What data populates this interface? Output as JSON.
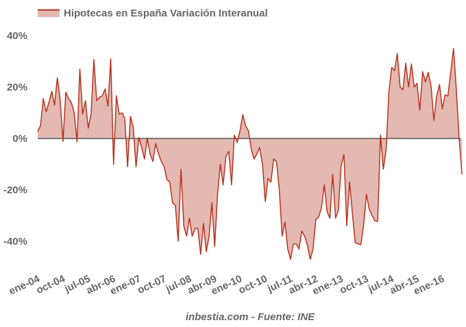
{
  "chart_data": {
    "type": "area",
    "title": "",
    "legend": {
      "label": "Hipotecas en España Variación Interanual",
      "position": "top-left"
    },
    "footer": "inbestia.com - Fuente: INE",
    "xlabel": "",
    "ylabel": "",
    "x_start": "ene-04",
    "frequency": "monthly",
    "x_tick_labels": [
      "ene-04",
      "oct-04",
      "jul-05",
      "abr-06",
      "ene-07",
      "oct-07",
      "jul-08",
      "abr-09",
      "ene-10",
      "oct-10",
      "jul-11",
      "abr-12",
      "ene-13",
      "oct-13",
      "jul-14",
      "abr-15",
      "ene-16"
    ],
    "x_tick_step_months": 9,
    "y_tick_labels": [
      "40%",
      "20%",
      "0%",
      "-20%",
      "-40%"
    ],
    "y_ticks": [
      40,
      20,
      0,
      -20,
      -40
    ],
    "ylim": [
      -50,
      45
    ],
    "grid": false,
    "colors": {
      "line": "#b8321e",
      "fill": "#e3b9b2",
      "zero_line": "#777777",
      "text": "#666666"
    },
    "series": [
      {
        "name": "Hipotecas en España Variación Interanual",
        "unit": "%",
        "values": [
          2.7,
          5,
          15.5,
          10.4,
          14,
          18.4,
          13,
          23.6,
          15,
          -1.1,
          18,
          15.5,
          14,
          10,
          -1.3,
          27,
          9.5,
          14.7,
          4,
          9.7,
          30.7,
          14.7,
          16,
          16.6,
          19.3,
          12.6,
          31,
          -10,
          16.6,
          9.5,
          10,
          7.7,
          -11,
          8.6,
          4.4,
          -11,
          0.4,
          -3.5,
          -8,
          0,
          -6,
          -9,
          -2,
          -6,
          -9,
          -11,
          -16,
          -17,
          -25,
          -26,
          -40,
          -12,
          -34,
          -38,
          -31,
          -38,
          -35,
          -35,
          -45,
          -33,
          -44,
          -38,
          -25,
          -42,
          -22,
          -10,
          -18,
          -7,
          -5,
          -18,
          1.3,
          -1.6,
          3,
          9.3,
          5,
          3,
          -4,
          -8,
          -6,
          -3.5,
          -10,
          -24.5,
          -15.5,
          -17,
          -8,
          -9,
          -20,
          -38,
          -32.5,
          -43,
          -47,
          -41,
          -41,
          -43,
          -36,
          -38,
          -41.5,
          -47,
          -43,
          -31.5,
          -30.5,
          -27,
          -18,
          -28.5,
          -31,
          -14,
          -31,
          -28,
          -10.5,
          -6.3,
          -34,
          -17,
          -29,
          -40.5,
          -41,
          -41.3,
          -33.7,
          -21.7,
          -27.5,
          -30,
          -32,
          -32.3,
          1.3,
          -12,
          -4.5,
          18.4,
          27.6,
          26.5,
          33,
          20,
          19,
          29.3,
          20,
          29,
          20,
          21.5,
          11,
          26,
          22,
          25.7,
          20.5,
          7,
          16.6,
          21,
          11.5,
          17,
          16.5,
          25.7,
          35,
          19,
          0,
          -14
        ]
      }
    ]
  }
}
